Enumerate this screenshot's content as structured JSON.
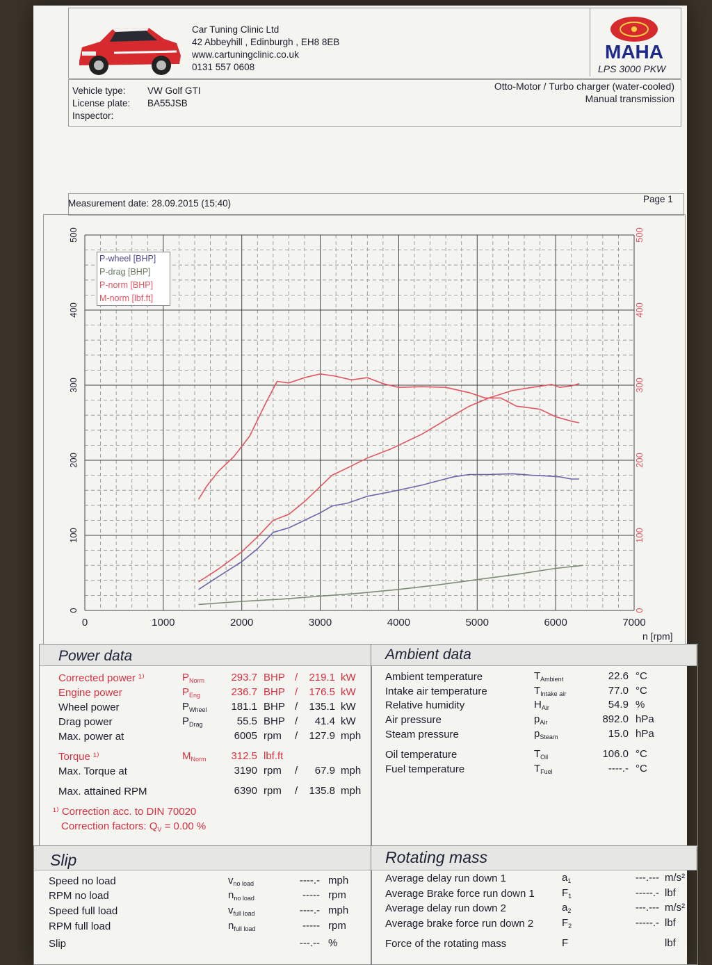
{
  "company": {
    "name": "Car Tuning Clinic Ltd",
    "address": "42 Abbeyhill , Edinburgh , EH8 8EB",
    "web": "www.cartuningclinic.co.uk",
    "phone": "0131 557 0608"
  },
  "brand": {
    "logo_text": "MAHA",
    "model": "LPS 3000 PKW"
  },
  "vehicle": {
    "type_label": "Vehicle type:",
    "type_value": "VW Golf GTI",
    "plate_label": "License plate:",
    "plate_value": "BA55JSB",
    "inspector_label": "Inspector:",
    "engine": "Otto-Motor / Turbo charger (water-cooled)",
    "transmission": "Manual transmission"
  },
  "measurement": {
    "date_label": "Measurement date: 28.09.2015 (15:40)",
    "page": "Page 1"
  },
  "chart_data": {
    "type": "line",
    "xlabel": "n [rpm]",
    "xlim": [
      0,
      7000
    ],
    "ylim": [
      0,
      500
    ],
    "ylim_right": [
      0,
      500
    ],
    "x_ticks": [
      "0",
      "1000",
      "2000",
      "3000",
      "4000",
      "5000",
      "6000",
      "7000"
    ],
    "y_ticks": [
      "0",
      "100",
      "200",
      "300",
      "400",
      "500"
    ],
    "y_ticks_right": [
      "0",
      "100",
      "200",
      "300",
      "400",
      "500"
    ],
    "grid": true,
    "legend_position": "top-left",
    "series": [
      {
        "name": "P-wheel [BHP]",
        "color": "#6a66aa",
        "points": [
          [
            1450,
            28
          ],
          [
            1700,
            45
          ],
          [
            2000,
            65
          ],
          [
            2200,
            82
          ],
          [
            2400,
            104
          ],
          [
            2600,
            110
          ],
          [
            2800,
            120
          ],
          [
            3000,
            130
          ],
          [
            3150,
            139
          ],
          [
            3350,
            143
          ],
          [
            3600,
            152
          ],
          [
            3900,
            158
          ],
          [
            4300,
            167
          ],
          [
            4700,
            178
          ],
          [
            4900,
            181
          ],
          [
            5150,
            181
          ],
          [
            5450,
            182
          ],
          [
            5700,
            180
          ],
          [
            5900,
            179
          ],
          [
            6050,
            178
          ],
          [
            6200,
            175
          ],
          [
            6300,
            175
          ]
        ]
      },
      {
        "name": "P-drag [BHP]",
        "color": "#7d8a74",
        "points": [
          [
            1450,
            8
          ],
          [
            2000,
            12
          ],
          [
            2500,
            15
          ],
          [
            3000,
            19
          ],
          [
            3500,
            23
          ],
          [
            4000,
            28
          ],
          [
            4500,
            34
          ],
          [
            5000,
            41
          ],
          [
            5500,
            48
          ],
          [
            6000,
            56
          ],
          [
            6350,
            60
          ]
        ]
      },
      {
        "name": "P-norm [BHP]",
        "color": "#e05562",
        "points": [
          [
            1450,
            38
          ],
          [
            1700,
            55
          ],
          [
            2000,
            78
          ],
          [
            2200,
            98
          ],
          [
            2400,
            120
          ],
          [
            2600,
            128
          ],
          [
            2800,
            145
          ],
          [
            3000,
            165
          ],
          [
            3150,
            180
          ],
          [
            3350,
            190
          ],
          [
            3600,
            203
          ],
          [
            3900,
            215
          ],
          [
            4300,
            235
          ],
          [
            4700,
            260
          ],
          [
            4900,
            272
          ],
          [
            5150,
            283
          ],
          [
            5450,
            293
          ],
          [
            5700,
            297
          ],
          [
            5950,
            301
          ],
          [
            6050,
            297
          ],
          [
            6200,
            299
          ],
          [
            6300,
            302
          ]
        ]
      },
      {
        "name": "M-norm [lbf.ft]",
        "color": "#e05562",
        "points": [
          [
            1450,
            148
          ],
          [
            1550,
            165
          ],
          [
            1700,
            185
          ],
          [
            1900,
            205
          ],
          [
            2100,
            232
          ],
          [
            2300,
            275
          ],
          [
            2450,
            305
          ],
          [
            2600,
            303
          ],
          [
            2800,
            310
          ],
          [
            3000,
            315
          ],
          [
            3190,
            312
          ],
          [
            3400,
            307
          ],
          [
            3600,
            310
          ],
          [
            3800,
            302
          ],
          [
            4000,
            297
          ],
          [
            4300,
            298
          ],
          [
            4600,
            297
          ],
          [
            4900,
            290
          ],
          [
            5100,
            283
          ],
          [
            5300,
            283
          ],
          [
            5500,
            272
          ],
          [
            5800,
            268
          ],
          [
            6000,
            258
          ],
          [
            6200,
            252
          ],
          [
            6300,
            250
          ]
        ]
      }
    ]
  },
  "power_data": {
    "title": "Power data",
    "rows": [
      {
        "label": "Corrected power ¹⁾",
        "sym": "P",
        "sub": "Norm",
        "v1": "293.7",
        "u1": "BHP",
        "sep": "/",
        "v2": "219.1",
        "u2": "kW",
        "red": true
      },
      {
        "label": "Engine power",
        "sym": "P",
        "sub": "Eng",
        "v1": "236.7",
        "u1": "BHP",
        "sep": "/",
        "v2": "176.5",
        "u2": "kW",
        "red": true
      },
      {
        "label": "Wheel power",
        "sym": "P",
        "sub": "Wheel",
        "v1": "181.1",
        "u1": "BHP",
        "sep": "/",
        "v2": "135.1",
        "u2": "kW",
        "red": false
      },
      {
        "label": "Drag power",
        "sym": "P",
        "sub": "Drag",
        "v1": "55.5",
        "u1": "BHP",
        "sep": "/",
        "v2": "41.4",
        "u2": "kW",
        "red": false
      },
      {
        "label": "Max. power at",
        "sym": "",
        "sub": "",
        "v1": "6005",
        "u1": "rpm",
        "sep": "/",
        "v2": "127.9",
        "u2": "mph",
        "red": false
      },
      {
        "label": "Torque ¹⁾",
        "sym": "M",
        "sub": "Norm",
        "v1": "312.5",
        "u1": "lbf.ft",
        "sep": "",
        "v2": "",
        "u2": "",
        "red": true
      },
      {
        "label": "Max. Torque at",
        "sym": "",
        "sub": "",
        "v1": "3190",
        "u1": "rpm",
        "sep": "/",
        "v2": "67.9",
        "u2": "mph",
        "red": false
      },
      {
        "label": "Max. attained RPM",
        "sym": "",
        "sub": "",
        "v1": "6390",
        "u1": "rpm",
        "sep": "/",
        "v2": "135.8",
        "u2": "mph",
        "red": false
      }
    ],
    "footnote1": "¹⁾ Correction acc. to DIN 70020",
    "footnote2": "Correction factors: Q",
    "footnote2_sub": "V",
    "footnote2_val": "=   0.00 %"
  },
  "ambient_data": {
    "title": "Ambient data",
    "rows": [
      {
        "label": "Ambient temperature",
        "sym": "T",
        "sub": "Ambient",
        "val": "22.6",
        "unit": "°C"
      },
      {
        "label": "Intake air temperature",
        "sym": "T",
        "sub": "Intake air",
        "val": "77.0",
        "unit": "°C"
      },
      {
        "label": "Relative humidity",
        "sym": "H",
        "sub": "Air",
        "val": "54.9",
        "unit": "%"
      },
      {
        "label": "Air pressure",
        "sym": "p",
        "sub": "Air",
        "val": "892.0",
        "unit": "hPa"
      },
      {
        "label": "Steam pressure",
        "sym": "p",
        "sub": "Steam",
        "val": "15.0",
        "unit": "hPa"
      },
      {
        "label": "Oil temperature",
        "sym": "T",
        "sub": "Oil",
        "val": "106.0",
        "unit": "°C"
      },
      {
        "label": "Fuel temperature",
        "sym": "T",
        "sub": "Fuel",
        "val": "----.-",
        "unit": "°C"
      }
    ]
  },
  "slip": {
    "title": "Slip",
    "rows": [
      {
        "label": "Speed no load",
        "sym": "v",
        "sub": "no load",
        "val": "----.-",
        "unit": "mph"
      },
      {
        "label": "RPM no load",
        "sym": "n",
        "sub": "no load",
        "val": "-----",
        "unit": "rpm"
      },
      {
        "label": "Speed full load",
        "sym": "v",
        "sub": "full load",
        "val": "----.-",
        "unit": "mph"
      },
      {
        "label": "RPM full load",
        "sym": "n",
        "sub": "full load",
        "val": "-----",
        "unit": "rpm"
      },
      {
        "label": "Slip",
        "sym": "",
        "sub": "",
        "val": "---.--",
        "unit": "%"
      }
    ]
  },
  "rotating_mass": {
    "title": "Rotating mass",
    "rows": [
      {
        "label": "Average delay run down 1",
        "sym": "a",
        "sub": "1",
        "val": "---.---",
        "unit": "m/s²"
      },
      {
        "label": "Average Brake force run down 1",
        "sym": "F",
        "sub": "1",
        "val": "-----.-",
        "unit": "lbf"
      },
      {
        "label": "Average delay run down 2",
        "sym": "a",
        "sub": "2",
        "val": "---.---",
        "unit": "m/s²"
      },
      {
        "label": "Average brake force run down 2",
        "sym": "F",
        "sub": "2",
        "val": "-----.-",
        "unit": "lbf"
      },
      {
        "label": "Force of the rotating mass",
        "sym": "F",
        "sub": "",
        "val": "",
        "unit": "lbf"
      }
    ]
  }
}
